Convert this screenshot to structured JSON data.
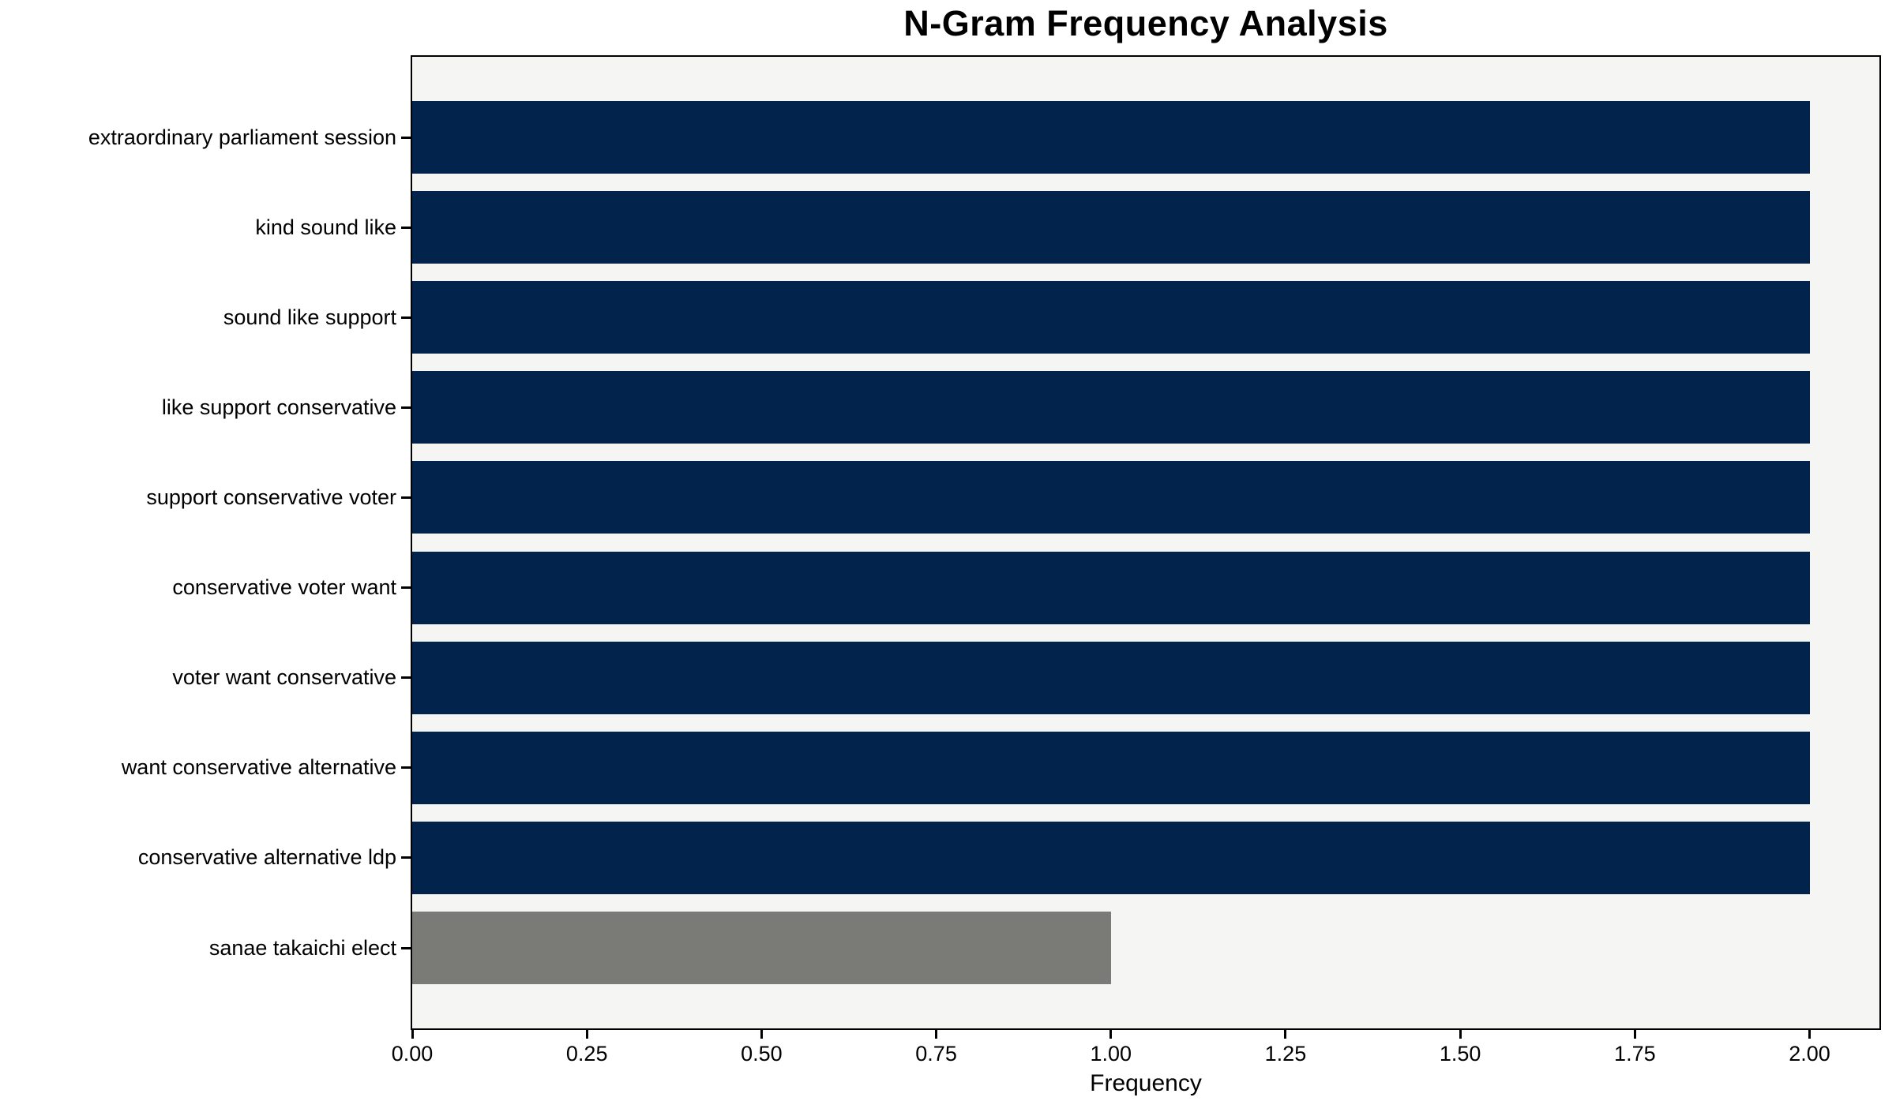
{
  "chart_data": {
    "type": "bar",
    "orientation": "horizontal",
    "title": "N-Gram Frequency Analysis",
    "xlabel": "Frequency",
    "ylabel": "",
    "categories": [
      "extraordinary parliament session",
      "kind sound like",
      "sound like support",
      "like support conservative",
      "support conservative voter",
      "conservative voter want",
      "voter want conservative",
      "want conservative alternative",
      "conservative alternative ldp",
      "sanae takaichi elect"
    ],
    "values": [
      2,
      2,
      2,
      2,
      2,
      2,
      2,
      2,
      2,
      1
    ],
    "bar_colors": [
      "#02234C",
      "#02234C",
      "#02234C",
      "#02234C",
      "#02234C",
      "#02234C",
      "#02234C",
      "#02234C",
      "#02234C",
      "#7A7A77"
    ],
    "x_ticks": [
      {
        "label": "0.00",
        "value": 0.0
      },
      {
        "label": "0.25",
        "value": 0.25
      },
      {
        "label": "0.50",
        "value": 0.5
      },
      {
        "label": "0.75",
        "value": 0.75
      },
      {
        "label": "1.00",
        "value": 1.0
      },
      {
        "label": "1.25",
        "value": 1.25
      },
      {
        "label": "1.50",
        "value": 1.5
      },
      {
        "label": "1.75",
        "value": 1.75
      },
      {
        "label": "2.00",
        "value": 2.0
      }
    ],
    "xlim": [
      0,
      2.1
    ],
    "grid": false,
    "legend": null,
    "colors": {
      "bar_primary": "#02234C",
      "bar_secondary": "#7A7A77",
      "plot_background": "#f5f5f4",
      "figure_background": "#ffffff",
      "spine": "#000000",
      "text": "#000000"
    }
  }
}
